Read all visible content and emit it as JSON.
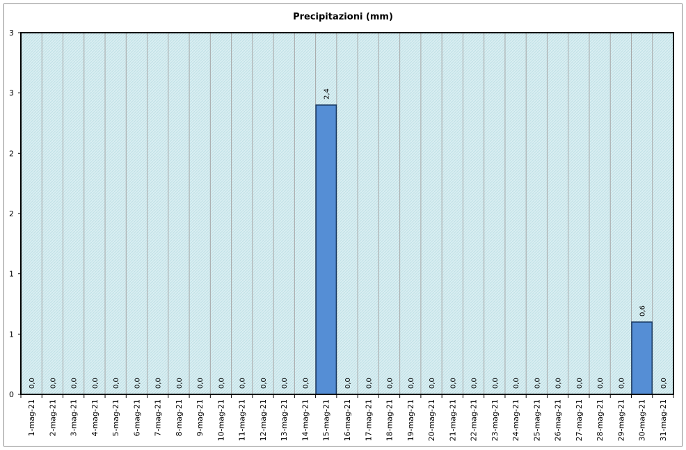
{
  "chart_data": {
    "type": "bar",
    "title": "Precipitazioni (mm)",
    "xlabel": "",
    "ylabel": "",
    "categories": [
      "1-mag-21",
      "2-mag-21",
      "3-mag-21",
      "4-mag-21",
      "5-mag-21",
      "6-mag-21",
      "7-mag-21",
      "8-mag-21",
      "9-mag-21",
      "10-mag-21",
      "11-mag-21",
      "12-mag-21",
      "13-mag-21",
      "14-mag-21",
      "15-mag-21",
      "16-mag-21",
      "17-mag-21",
      "18-mag-21",
      "19-mag-21",
      "20-mag-21",
      "21-mag-21",
      "22-mag-21",
      "23-mag-21",
      "24-mag-21",
      "25-mag-21",
      "26-mag-21",
      "27-mag-21",
      "28-mag-21",
      "29-mag-21",
      "30-mag-21",
      "31-mag-21"
    ],
    "values": [
      0,
      0,
      0,
      0,
      0,
      0,
      0,
      0,
      0,
      0,
      0,
      0,
      0,
      0,
      2.4,
      0,
      0,
      0,
      0,
      0,
      0,
      0,
      0,
      0,
      0,
      0,
      0,
      0,
      0,
      0.6,
      0
    ],
    "data_labels": [
      "0,0",
      "0,0",
      "0,0",
      "0,0",
      "0,0",
      "0,0",
      "0,0",
      "0,0",
      "0,0",
      "0,0",
      "0,0",
      "0,0",
      "0,0",
      "0,0",
      "2,4",
      "0,0",
      "0,0",
      "0,0",
      "0,0",
      "0,0",
      "0,0",
      "0,0",
      "0,0",
      "0,0",
      "0,0",
      "0,0",
      "0,0",
      "0,0",
      "0,0",
      "0,6",
      "0,0"
    ],
    "ylim": [
      0,
      3
    ],
    "yticks": [
      0,
      0.5,
      1,
      1.5,
      2,
      2.5,
      3
    ],
    "ytick_labels": [
      "0",
      "1",
      "1",
      "2",
      "2",
      "3",
      "3"
    ],
    "grid": "vertical",
    "legend": "none",
    "colors": {
      "bar": "#558ed5",
      "bar_border": "#17375e",
      "plot_background": "#d9eef2",
      "plot_hatch": "#bfe0e6",
      "grid": "#a6a6a6",
      "axis": "#000000"
    }
  }
}
